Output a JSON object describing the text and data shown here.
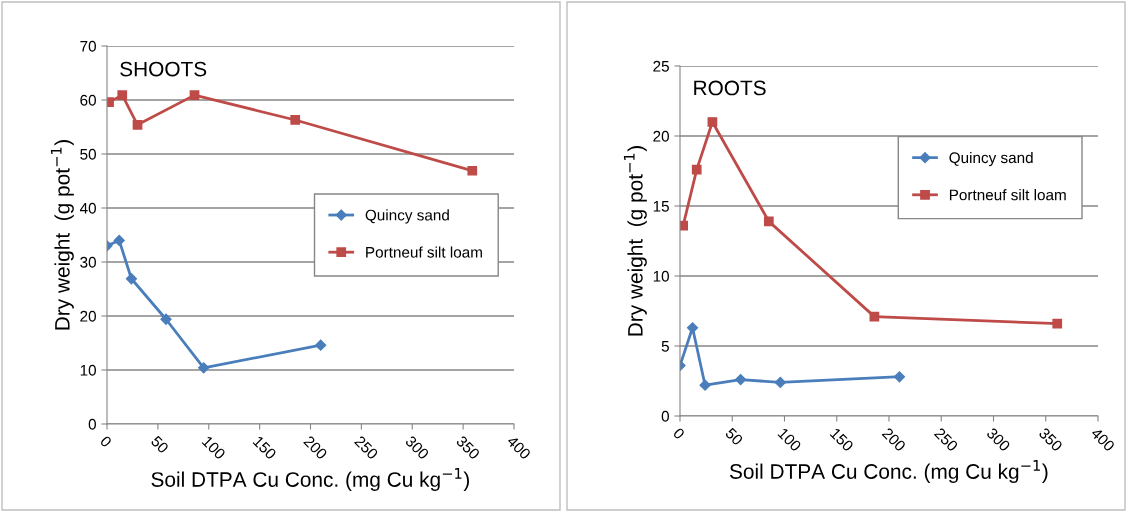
{
  "chart_data": [
    {
      "type": "line",
      "title": "SHOOTS",
      "xlabel": "Soil DTPA Cu Conc. (mg Cu kg$^{−1}$)",
      "ylabel": "Dry weight  (g pot$^{−1}$)",
      "xlim": [
        0,
        400
      ],
      "xticks": [
        0,
        50,
        100,
        150,
        200,
        250,
        300,
        350,
        400
      ],
      "ylim": [
        0,
        70
      ],
      "yticks": [
        0,
        10,
        20,
        30,
        40,
        50,
        60,
        70
      ],
      "grid": "y",
      "legend": "center right",
      "series": [
        {
          "name": "Quincy sand",
          "color": "#4a7ebb",
          "marker": "diamond",
          "x": [
            0,
            12,
            24,
            58,
            95,
            210
          ],
          "values": [
            33,
            34,
            26.9,
            19.4,
            10.4,
            14.6
          ]
        },
        {
          "name": "Portneuf silt loam",
          "color": "#be4b48",
          "marker": "square",
          "x": [
            2,
            15,
            30,
            86,
            185,
            359
          ],
          "values": [
            59.6,
            60.9,
            55.4,
            60.9,
            56.3,
            46.9
          ]
        }
      ]
    },
    {
      "type": "line",
      "title": "ROOTS",
      "xlabel": "Soil DTPA Cu Conc. (mg Cu kg$^{−1}$)",
      "ylabel": "Dry weight  (g pot$^{−1}$)",
      "xlim": [
        0,
        400
      ],
      "xticks": [
        0,
        50,
        100,
        150,
        200,
        250,
        300,
        350,
        400
      ],
      "ylim": [
        0,
        25
      ],
      "yticks": [
        0,
        5,
        10,
        15,
        20,
        25
      ],
      "grid": "y",
      "legend": "upper right",
      "series": [
        {
          "name": "Quincy sand",
          "color": "#4a7ebb",
          "marker": "diamond",
          "x": [
            0,
            12,
            24,
            58,
            96,
            210
          ],
          "values": [
            3.6,
            6.3,
            2.2,
            2.6,
            2.4,
            2.8
          ]
        },
        {
          "name": "Portneuf silt loam",
          "color": "#be4b48",
          "marker": "square",
          "x": [
            3,
            16,
            31,
            85,
            186,
            361
          ],
          "values": [
            13.6,
            17.6,
            21.0,
            13.9,
            7.1,
            6.6
          ]
        }
      ]
    }
  ]
}
